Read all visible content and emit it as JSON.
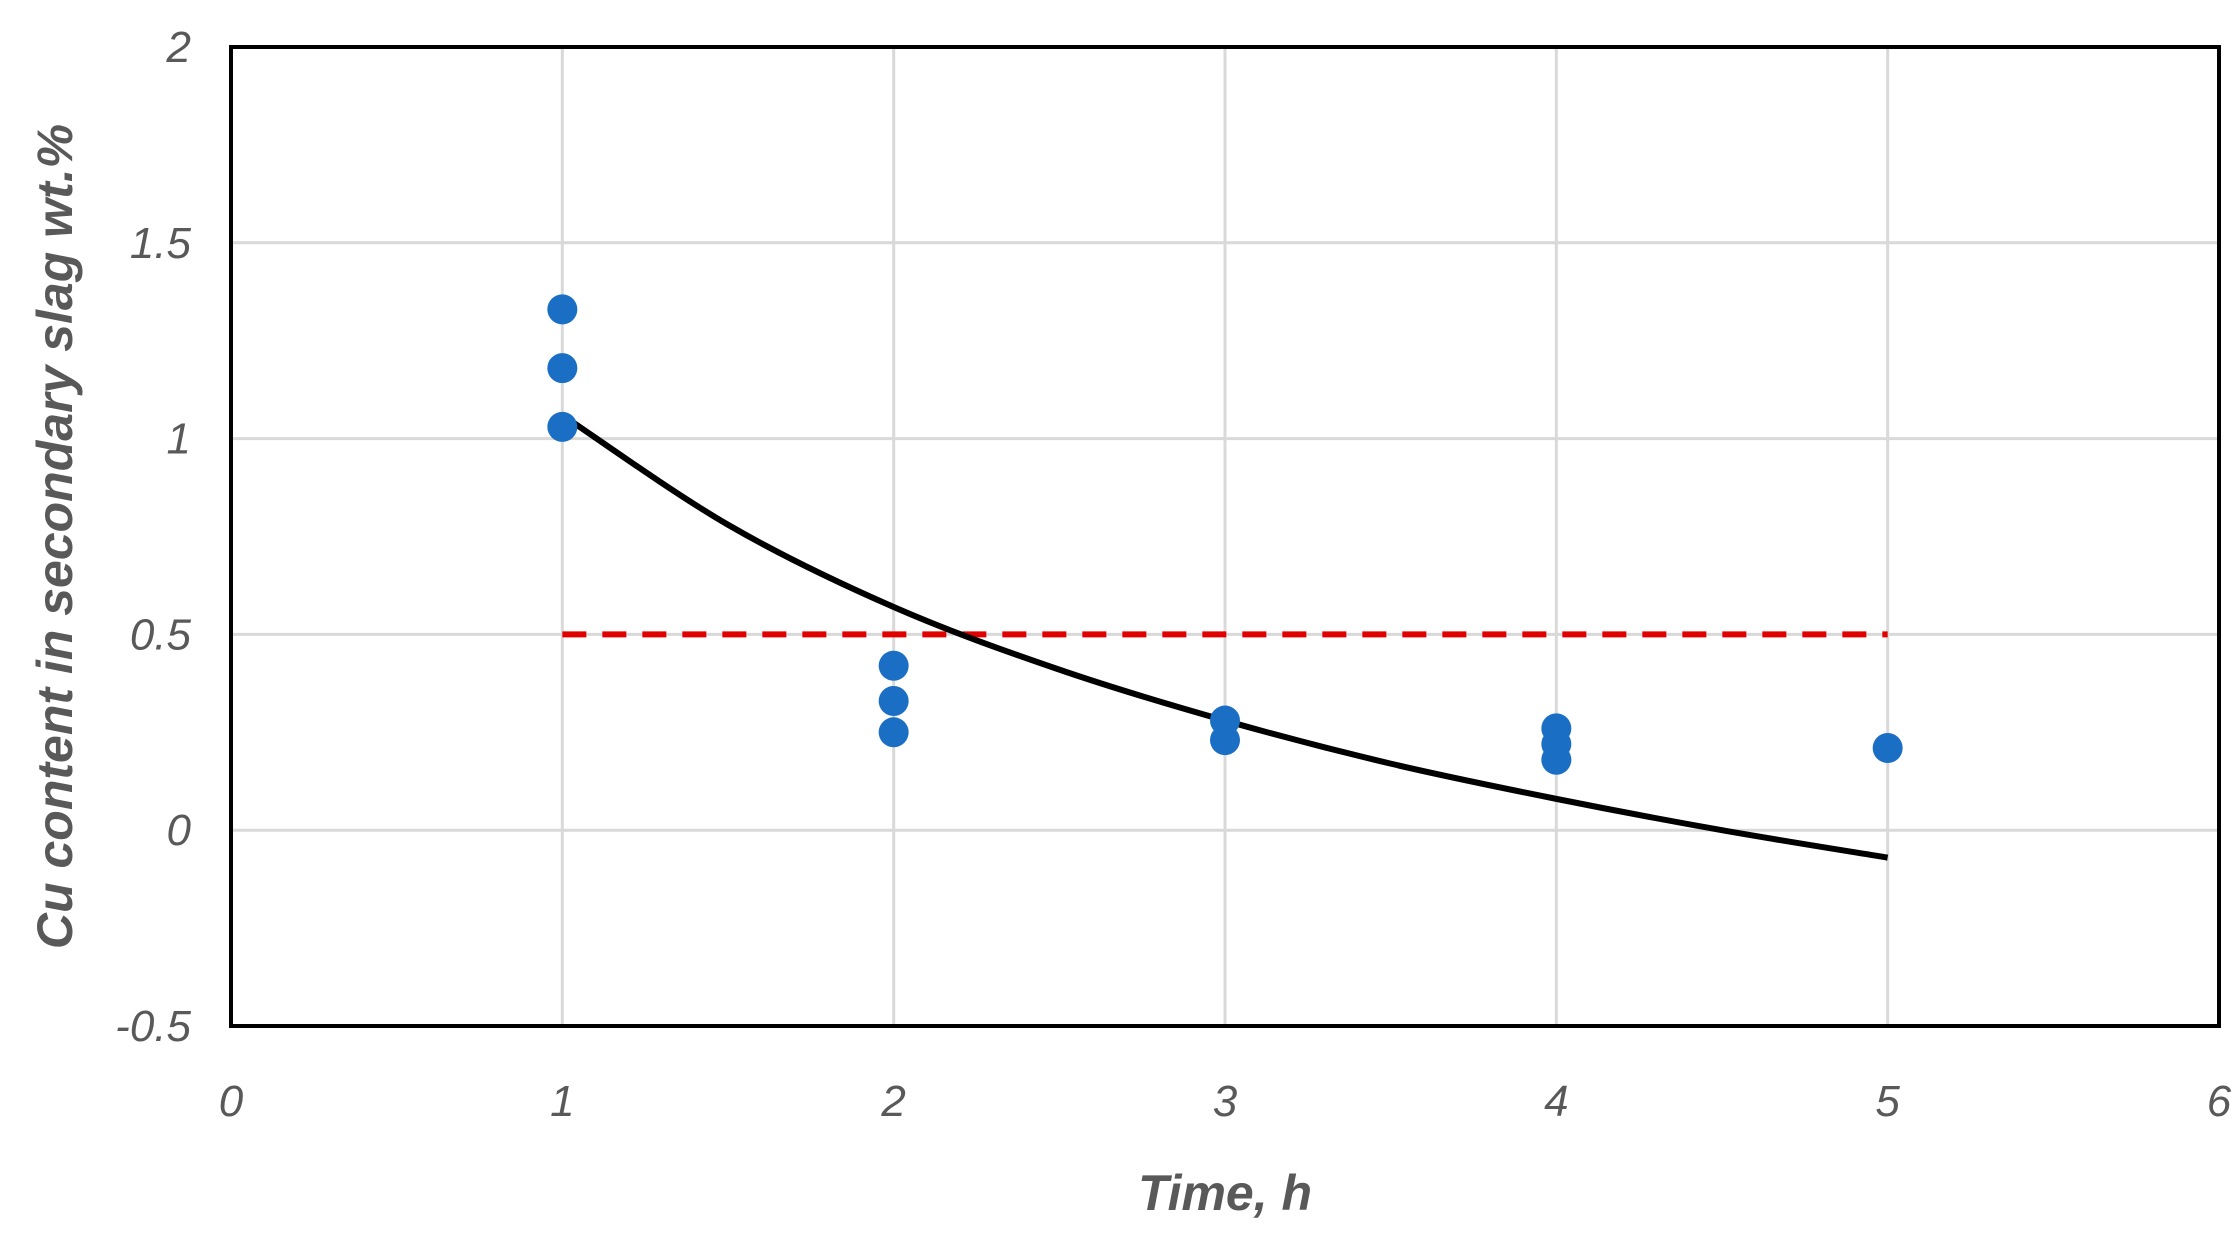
{
  "chart_data": {
    "type": "scatter",
    "title": "",
    "xlabel": "Time, h",
    "ylabel": "Cu content in secondary slag wt.%",
    "xlim": [
      0,
      6
    ],
    "ylim": [
      -0.5,
      2
    ],
    "xticks": [
      0,
      1,
      2,
      3,
      4,
      5,
      6
    ],
    "yticks": [
      -0.5,
      0,
      0.5,
      1,
      1.5,
      2
    ],
    "xtick_labels": [
      "0",
      "1",
      "2",
      "3",
      "4",
      "5",
      "6"
    ],
    "ytick_labels": [
      "-0.5",
      "0",
      "0.5",
      "1",
      "1.5",
      "2"
    ],
    "grid": true,
    "legend": "none",
    "series": [
      {
        "kind": "scatter",
        "color": "#1a6fc4",
        "points": [
          {
            "x": 1,
            "y": 1.33
          },
          {
            "x": 1,
            "y": 1.18
          },
          {
            "x": 1,
            "y": 1.03
          },
          {
            "x": 2,
            "y": 0.42
          },
          {
            "x": 2,
            "y": 0.33
          },
          {
            "x": 2,
            "y": 0.25
          },
          {
            "x": 3,
            "y": 0.28
          },
          {
            "x": 3,
            "y": 0.23
          },
          {
            "x": 4,
            "y": 0.26
          },
          {
            "x": 4,
            "y": 0.22
          },
          {
            "x": 4,
            "y": 0.18
          },
          {
            "x": 5,
            "y": 0.21
          }
        ]
      },
      {
        "kind": "trendline",
        "style": "solid",
        "color": "#000000",
        "x": [
          1,
          1.5,
          2,
          2.5,
          3,
          3.5,
          4,
          4.5,
          5
        ],
        "y": [
          1.06,
          0.78,
          0.57,
          0.41,
          0.28,
          0.17,
          0.08,
          0.0,
          -0.07
        ]
      },
      {
        "kind": "reference-line",
        "style": "dashed",
        "color": "#e00000",
        "x": [
          1,
          5
        ],
        "y": [
          0.5,
          0.5
        ]
      }
    ]
  }
}
